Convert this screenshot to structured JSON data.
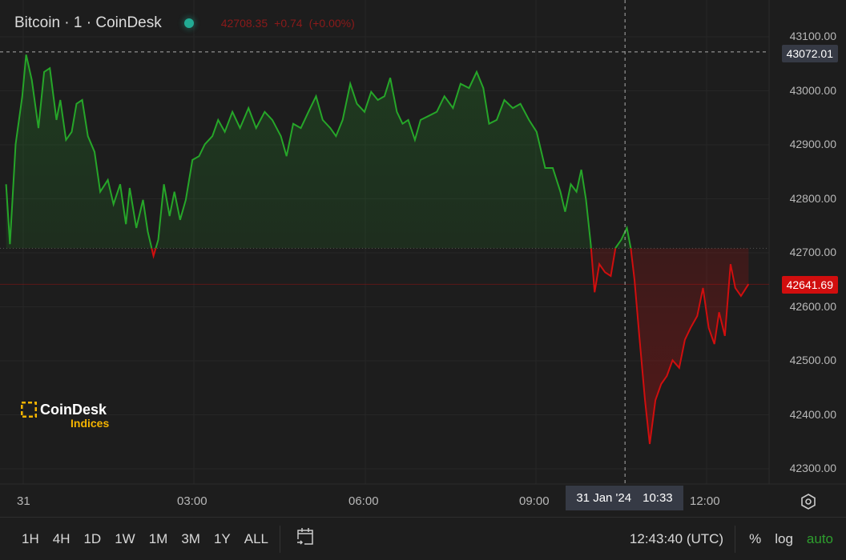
{
  "header": {
    "title": "Bitcoin · 1 · CoinDesk",
    "status_color": "#22ab94",
    "last": "42708.35",
    "change": "+0.74",
    "change_pct": "(+0.00%)"
  },
  "logo": {
    "name": "CoinDesk",
    "sub": "Indices"
  },
  "crosshair": {
    "price_label": "43072.01",
    "time_label_date": "31 Jan '24",
    "time_label_time": "10:33"
  },
  "current_price_label": "42641.69",
  "toolbar": {
    "ranges": [
      "1H",
      "4H",
      "1D",
      "1W",
      "1M",
      "3M",
      "1Y",
      "ALL"
    ],
    "clock": "12:43:40 (UTC)",
    "percent": "%",
    "log": "log",
    "auto": "auto"
  },
  "colors": {
    "up": "#26a629",
    "down": "#d10e0e",
    "bg": "#1d1d1d",
    "auto": "#2e9e2e"
  },
  "chart_data": {
    "type": "area",
    "baseline": 42708.35,
    "ylim": [
      42270,
      43140
    ],
    "y_ticks": [
      "43100.00",
      "43000.00",
      "42900.00",
      "42800.00",
      "42700.00",
      "42600.00",
      "42500.00",
      "42400.00",
      "42300.00"
    ],
    "x_ticks": [
      "31",
      "03:00",
      "06:00",
      "09:00",
      "12:00"
    ],
    "grid": true,
    "series": [
      {
        "points": [
          [
            "23:42",
            42827
          ],
          [
            "23:46",
            42716
          ],
          [
            "23:52",
            42901
          ],
          [
            "23:59",
            42990
          ],
          [
            "00:03",
            43067
          ],
          [
            "00:09",
            43020
          ],
          [
            "00:16",
            42931
          ],
          [
            "00:22",
            43035
          ],
          [
            "00:28",
            43042
          ],
          [
            "00:35",
            42946
          ],
          [
            "00:39",
            42983
          ],
          [
            "00:45",
            42909
          ],
          [
            "00:51",
            42924
          ],
          [
            "00:56",
            42976
          ],
          [
            "01:02",
            42983
          ],
          [
            "01:08",
            42916
          ],
          [
            "01:15",
            42887
          ],
          [
            "01:21",
            42813
          ],
          [
            "01:29",
            42835
          ],
          [
            "01:35",
            42790
          ],
          [
            "01:42",
            42827
          ],
          [
            "01:48",
            42753
          ],
          [
            "01:52",
            42820
          ],
          [
            "01:59",
            42746
          ],
          [
            "02:06",
            42798
          ],
          [
            "02:11",
            42739
          ],
          [
            "02:17",
            42694
          ],
          [
            "02:22",
            42724
          ],
          [
            "02:28",
            42827
          ],
          [
            "02:34",
            42768
          ],
          [
            "02:39",
            42813
          ],
          [
            "02:45",
            42761
          ],
          [
            "02:51",
            42798
          ],
          [
            "02:58",
            42872
          ],
          [
            "03:05",
            42879
          ],
          [
            "03:11",
            42901
          ],
          [
            "03:19",
            42916
          ],
          [
            "03:25",
            42946
          ],
          [
            "03:32",
            42924
          ],
          [
            "03:40",
            42961
          ],
          [
            "03:48",
            42931
          ],
          [
            "03:57",
            42968
          ],
          [
            "04:05",
            42931
          ],
          [
            "04:14",
            42961
          ],
          [
            "04:22",
            42946
          ],
          [
            "04:31",
            42916
          ],
          [
            "04:37",
            42879
          ],
          [
            "04:44",
            42939
          ],
          [
            "04:52",
            42931
          ],
          [
            "05:00",
            42961
          ],
          [
            "05:08",
            42990
          ],
          [
            "05:15",
            42946
          ],
          [
            "05:23",
            42931
          ],
          [
            "05:29",
            42916
          ],
          [
            "05:36",
            42946
          ],
          [
            "05:44",
            43013
          ],
          [
            "05:51",
            42976
          ],
          [
            "05:59",
            42961
          ],
          [
            "06:06",
            42998
          ],
          [
            "06:13",
            42983
          ],
          [
            "06:20",
            42990
          ],
          [
            "06:26",
            43024
          ],
          [
            "06:33",
            42961
          ],
          [
            "06:39",
            42939
          ],
          [
            "06:45",
            42946
          ],
          [
            "06:52",
            42909
          ],
          [
            "06:58",
            42946
          ],
          [
            "07:06",
            42953
          ],
          [
            "07:15",
            42961
          ],
          [
            "07:23",
            42990
          ],
          [
            "07:32",
            42968
          ],
          [
            "07:40",
            43013
          ],
          [
            "07:49",
            43005
          ],
          [
            "07:57",
            43035
          ],
          [
            "08:04",
            43005
          ],
          [
            "08:10",
            42939
          ],
          [
            "08:18",
            42946
          ],
          [
            "08:26",
            42983
          ],
          [
            "08:35",
            42968
          ],
          [
            "08:43",
            42976
          ],
          [
            "08:52",
            42946
          ],
          [
            "09:00",
            42924
          ],
          [
            "09:09",
            42857
          ],
          [
            "09:17",
            42857
          ],
          [
            "09:25",
            42813
          ],
          [
            "09:30",
            42776
          ],
          [
            "09:36",
            42827
          ],
          [
            "09:42",
            42813
          ],
          [
            "09:47",
            42854
          ],
          [
            "09:52",
            42798
          ],
          [
            "09:57",
            42716
          ],
          [
            "10:01",
            42627
          ],
          [
            "10:06",
            42679
          ],
          [
            "10:12",
            42664
          ],
          [
            "10:18",
            42657
          ],
          [
            "10:23",
            42709
          ],
          [
            "10:29",
            42724
          ],
          [
            "10:35",
            42746
          ],
          [
            "10:39",
            42709
          ],
          [
            "10:43",
            42650
          ],
          [
            "10:48",
            42546
          ],
          [
            "10:54",
            42427
          ],
          [
            "10:59",
            42346
          ],
          [
            "11:05",
            42427
          ],
          [
            "11:11",
            42457
          ],
          [
            "11:17",
            42472
          ],
          [
            "11:23",
            42501
          ],
          [
            "11:30",
            42487
          ],
          [
            "11:36",
            42539
          ],
          [
            "11:42",
            42561
          ],
          [
            "11:49",
            42583
          ],
          [
            "11:55",
            42635
          ],
          [
            "12:01",
            42561
          ],
          [
            "12:07",
            42531
          ],
          [
            "12:12",
            42590
          ],
          [
            "12:18",
            42546
          ],
          [
            "12:24",
            42679
          ],
          [
            "12:29",
            42635
          ],
          [
            "12:35",
            42620
          ],
          [
            "12:43",
            42642
          ]
        ]
      }
    ]
  }
}
